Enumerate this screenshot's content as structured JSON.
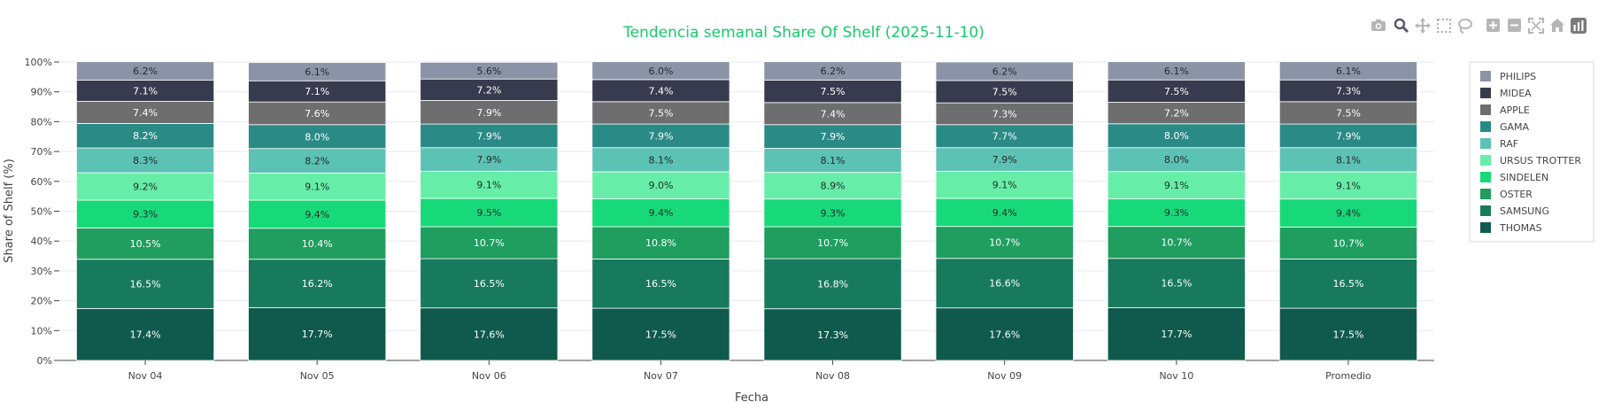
{
  "chart_data": {
    "type": "bar",
    "stacked": true,
    "title": "Tendencia semanal Share Of Shelf (2025-11-10)",
    "xlabel": "Fecha",
    "ylabel": "Share of Shelf (%)",
    "ylim": [
      0,
      100
    ],
    "yticks": [
      "0%",
      "10%",
      "20%",
      "30%",
      "40%",
      "50%",
      "60%",
      "70%",
      "80%",
      "90%",
      "100%"
    ],
    "categories": [
      "Nov 04",
      "Nov 05",
      "Nov 06",
      "Nov 07",
      "Nov 08",
      "Nov 09",
      "Nov 10",
      "Promedio"
    ],
    "legend_position": "right",
    "series": [
      {
        "name": "THOMAS",
        "color": "#0f5a4c",
        "label_color": "#ffffff",
        "values": [
          17.4,
          17.7,
          17.6,
          17.5,
          17.3,
          17.6,
          17.7,
          17.5
        ]
      },
      {
        "name": "SAMSUNG",
        "color": "#177a5d",
        "label_color": "#ffffff",
        "values": [
          16.5,
          16.2,
          16.5,
          16.5,
          16.8,
          16.6,
          16.5,
          16.5
        ]
      },
      {
        "name": "OSTER",
        "color": "#1f9e5f",
        "label_color": "#ffffff",
        "values": [
          10.5,
          10.4,
          10.7,
          10.8,
          10.7,
          10.7,
          10.7,
          10.7
        ]
      },
      {
        "name": "SINDELEN",
        "color": "#18d97a",
        "label_color": "#1f2a2a",
        "values": [
          9.3,
          9.4,
          9.5,
          9.4,
          9.3,
          9.4,
          9.3,
          9.4
        ]
      },
      {
        "name": "URSUS TROTTER",
        "color": "#66eea8",
        "label_color": "#1f2a2a",
        "values": [
          9.2,
          9.1,
          9.1,
          9.0,
          8.9,
          9.1,
          9.1,
          9.1
        ]
      },
      {
        "name": "RAF",
        "color": "#5cc2b4",
        "label_color": "#1f2a2a",
        "values": [
          8.3,
          8.2,
          7.9,
          8.1,
          8.1,
          7.9,
          8.0,
          8.1
        ]
      },
      {
        "name": "GAMA",
        "color": "#2a8a86",
        "label_color": "#ffffff",
        "values": [
          8.2,
          8.0,
          7.9,
          7.9,
          7.9,
          7.7,
          8.0,
          7.9
        ]
      },
      {
        "name": "APPLE",
        "color": "#6e6e6e",
        "label_color": "#ffffff",
        "values": [
          7.4,
          7.6,
          7.9,
          7.5,
          7.4,
          7.3,
          7.2,
          7.5
        ]
      },
      {
        "name": "MIDEA",
        "color": "#383b4e",
        "label_color": "#ffffff",
        "values": [
          7.1,
          7.1,
          7.2,
          7.4,
          7.5,
          7.5,
          7.5,
          7.3
        ]
      },
      {
        "name": "PHILIPS",
        "color": "#8b94a6",
        "label_color": "#1f2a2a",
        "values": [
          6.2,
          6.1,
          5.6,
          6.0,
          6.2,
          6.2,
          6.1,
          6.1
        ]
      }
    ],
    "legend_order": [
      "PHILIPS",
      "MIDEA",
      "APPLE",
      "GAMA",
      "RAF",
      "URSUS TROTTER",
      "SINDELEN",
      "OSTER",
      "SAMSUNG",
      "THOMAS"
    ],
    "grid": true
  },
  "toolbar": {
    "icons": [
      "camera-icon",
      "zoom-icon",
      "pan-icon",
      "box-select-icon",
      "lasso-icon",
      "zoom-in-icon",
      "zoom-out-icon",
      "autoscale-icon",
      "reset-axes-icon",
      "plotly-logo-icon"
    ]
  }
}
